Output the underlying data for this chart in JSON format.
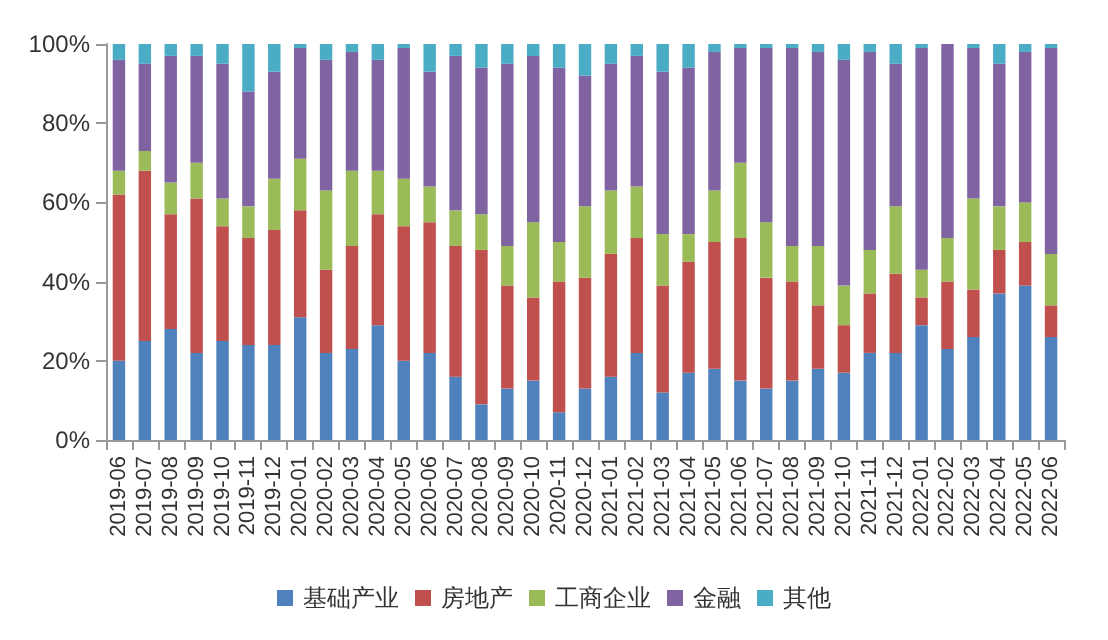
{
  "chart_data": {
    "type": "bar",
    "stacked": true,
    "legend": "bottom",
    "grid": false,
    "categories": [
      "2019-06",
      "2019-07",
      "2019-08",
      "2019-09",
      "2019-10",
      "2019-11",
      "2019-12",
      "2020-01",
      "2020-02",
      "2020-03",
      "2020-04",
      "2020-05",
      "2020-06",
      "2020-07",
      "2020-08",
      "2020-09",
      "2020-10",
      "2020-11",
      "2020-12",
      "2021-01",
      "2021-02",
      "2021-03",
      "2021-04",
      "2021-05",
      "2021-06",
      "2021-07",
      "2021-08",
      "2021-09",
      "2021-10",
      "2021-11",
      "2021-12",
      "2022-01",
      "2022-02",
      "2022-03",
      "2022-04",
      "2022-05",
      "2022-06"
    ],
    "ylim": [
      0,
      100
    ],
    "yticks": [
      {
        "value": 0,
        "label": "0%"
      },
      {
        "value": 20,
        "label": "20%"
      },
      {
        "value": 40,
        "label": "40%"
      },
      {
        "value": 60,
        "label": "60%"
      },
      {
        "value": 80,
        "label": "80%"
      },
      {
        "value": 100,
        "label": "100%"
      }
    ],
    "series": [
      {
        "name": "基础产业",
        "color": "#4f81bd",
        "values": [
          20,
          25,
          28,
          22,
          25,
          24,
          24,
          31,
          22,
          23,
          29,
          20,
          22,
          16,
          9,
          13,
          15,
          7,
          13,
          16,
          22,
          12,
          17,
          18,
          15,
          13,
          15,
          18,
          17,
          22,
          22,
          29,
          23,
          26,
          37,
          39,
          26
        ]
      },
      {
        "name": "房地产",
        "color": "#c0504d",
        "values": [
          42,
          43,
          29,
          39,
          29,
          27,
          29,
          27,
          21,
          26,
          28,
          34,
          33,
          33,
          39,
          26,
          21,
          33,
          28,
          31,
          29,
          27,
          28,
          32,
          36,
          28,
          25,
          16,
          12,
          15,
          20,
          7,
          17,
          12,
          11,
          11,
          8
        ]
      },
      {
        "name": "工商企业",
        "color": "#9bbb59",
        "values": [
          6,
          5,
          8,
          9,
          7,
          8,
          13,
          13,
          20,
          19,
          11,
          12,
          9,
          9,
          9,
          10,
          19,
          10,
          18,
          16,
          13,
          13,
          7,
          13,
          19,
          14,
          9,
          15,
          10,
          11,
          17,
          7,
          11,
          23,
          11,
          10,
          13
        ]
      },
      {
        "name": "金融",
        "color": "#8064a2",
        "values": [
          28,
          22,
          32,
          27,
          34,
          29,
          27,
          28,
          33,
          30,
          28,
          33,
          29,
          39,
          37,
          46,
          42,
          44,
          33,
          32,
          33,
          41,
          42,
          35,
          29,
          44,
          50,
          49,
          57,
          50,
          36,
          56,
          49,
          38,
          36,
          38,
          52
        ]
      },
      {
        "name": "其他",
        "color": "#4bacc6",
        "values": [
          4,
          5,
          3,
          3,
          5,
          12,
          7,
          1,
          4,
          2,
          4,
          1,
          7,
          3,
          6,
          5,
          3,
          6,
          8,
          5,
          3,
          7,
          6,
          2,
          1,
          1,
          1,
          2,
          4,
          2,
          5,
          1,
          0,
          1,
          5,
          2,
          1
        ]
      }
    ]
  }
}
